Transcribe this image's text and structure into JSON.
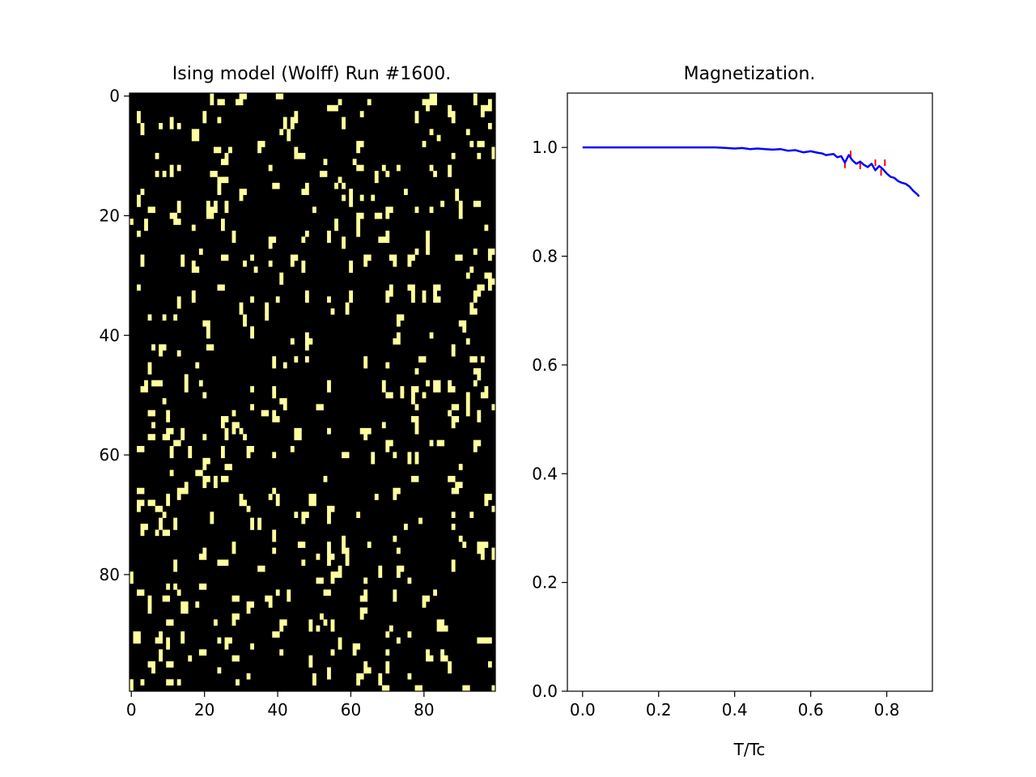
{
  "chart_data": [
    {
      "type": "heatmap",
      "title": "Ising model (Wolff) Run #1600.",
      "grid_size": [
        100,
        100
      ],
      "colormap": {
        "up": "#ffff9e",
        "down": "#000000"
      },
      "x_ticks": [
        0,
        20,
        40,
        60,
        80
      ],
      "y_ticks": [
        0,
        20,
        40,
        60,
        80
      ],
      "xlim": [
        -0.5,
        99.5
      ],
      "ylim": [
        99.5,
        -0.5
      ],
      "aspect": "equal",
      "up_spin_fraction": 0.06,
      "seed": 1600
    },
    {
      "type": "line",
      "title": "Magnetization.",
      "xlabel": "T/Tc",
      "ylabel": "",
      "xlim": [
        -0.04,
        0.92
      ],
      "ylim": [
        0.0,
        1.1
      ],
      "x_ticks": [
        0.0,
        0.2,
        0.4,
        0.6,
        0.8
      ],
      "x_tick_labels": [
        "0.0",
        "0.2",
        "0.4",
        "0.6",
        "0.8"
      ],
      "y_ticks": [
        0.0,
        0.2,
        0.4,
        0.6,
        0.8,
        1.0
      ],
      "y_tick_labels": [
        "0.0",
        "0.2",
        "0.4",
        "0.6",
        "0.8",
        "1.0"
      ],
      "series": [
        {
          "color": "#0000ff",
          "x": [
            0.0,
            0.05,
            0.1,
            0.15,
            0.2,
            0.25,
            0.3,
            0.35,
            0.38,
            0.4,
            0.42,
            0.44,
            0.46,
            0.48,
            0.5,
            0.52,
            0.54,
            0.56,
            0.58,
            0.6,
            0.62,
            0.63,
            0.64,
            0.66,
            0.67,
            0.68,
            0.69,
            0.7,
            0.71,
            0.72,
            0.73,
            0.74,
            0.75,
            0.76,
            0.77,
            0.78,
            0.79,
            0.8,
            0.81,
            0.82,
            0.83,
            0.84,
            0.85,
            0.86,
            0.87,
            0.88,
            0.885
          ],
          "values": [
            1.0,
            1.0,
            1.0,
            1.0,
            1.0,
            1.0,
            1.0,
            1.0,
            0.999,
            0.998,
            0.999,
            0.997,
            0.998,
            0.997,
            0.996,
            0.997,
            0.994,
            0.995,
            0.991,
            0.993,
            0.99,
            0.989,
            0.986,
            0.988,
            0.982,
            0.984,
            0.972,
            0.986,
            0.976,
            0.97,
            0.974,
            0.968,
            0.964,
            0.97,
            0.958,
            0.966,
            0.96,
            0.952,
            0.946,
            0.944,
            0.938,
            0.935,
            0.933,
            0.928,
            0.92,
            0.914,
            0.91
          ]
        },
        {
          "color": "#ff0000",
          "marker": "error",
          "x": [
            0.69,
            0.705,
            0.73,
            0.77,
            0.785,
            0.795
          ],
          "values": [
            0.968,
            0.988,
            0.966,
            0.972,
            0.954,
            0.972
          ]
        }
      ]
    }
  ]
}
